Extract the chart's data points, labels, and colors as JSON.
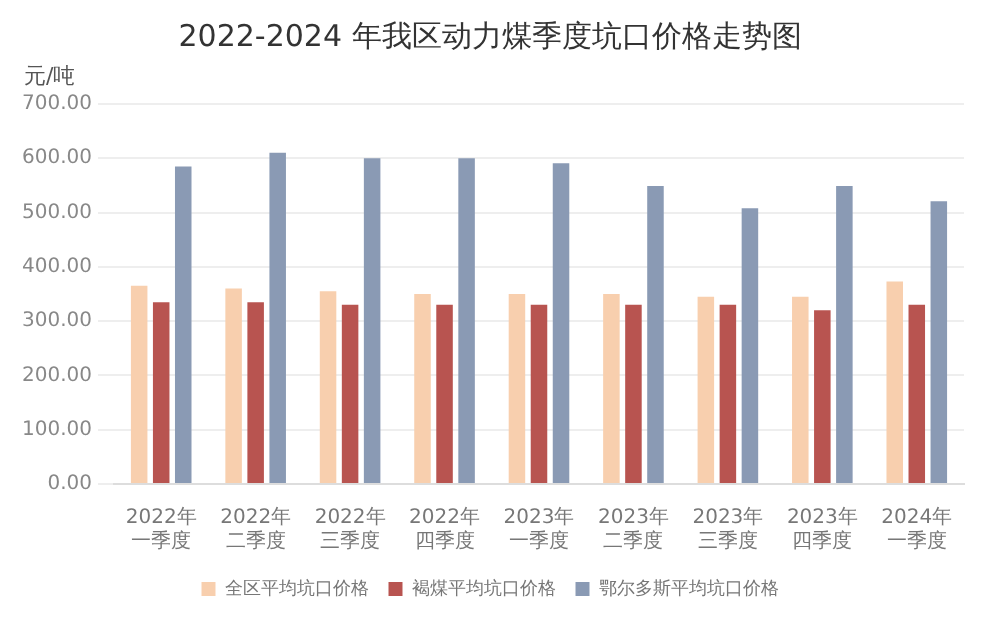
{
  "chart_data": {
    "type": "bar",
    "title": "2022-2024 年我区动力煤季度坑口价格走势图",
    "ylabel": "元/吨",
    "categories": [
      "2022年一季度",
      "2022年二季度",
      "2022年三季度",
      "2022年四季度",
      "2023年一季度",
      "2023年二季度",
      "2023年三季度",
      "2023年四季度",
      "2024年一季度"
    ],
    "series": [
      {
        "name": "全区平均坑口价格",
        "color": "#f8cfae",
        "values": [
          365,
          360,
          355,
          350,
          350,
          350,
          345,
          345,
          373
        ]
      },
      {
        "name": "褐煤平均坑口价格",
        "color": "#b85450",
        "values": [
          335,
          335,
          330,
          330,
          330,
          330,
          330,
          320,
          330
        ]
      },
      {
        "name": "鄂尔多斯平均坑口价格",
        "color": "#8a9ab4",
        "values": [
          585,
          610,
          600,
          600,
          591,
          549,
          508,
          549,
          521
        ]
      }
    ],
    "ylim": [
      0,
      700
    ],
    "yticks": [
      {
        "value": 0,
        "label": "0.00"
      },
      {
        "value": 100,
        "label": "100.00"
      },
      {
        "value": 200,
        "label": "200.00"
      },
      {
        "value": 300,
        "label": "300.00"
      },
      {
        "value": 400,
        "label": "400.00"
      },
      {
        "value": 500,
        "label": "500.00"
      },
      {
        "value": 600,
        "label": "600.00"
      },
      {
        "value": 700,
        "label": "700.00"
      }
    ],
    "grid": "y",
    "legend": "bottom"
  }
}
